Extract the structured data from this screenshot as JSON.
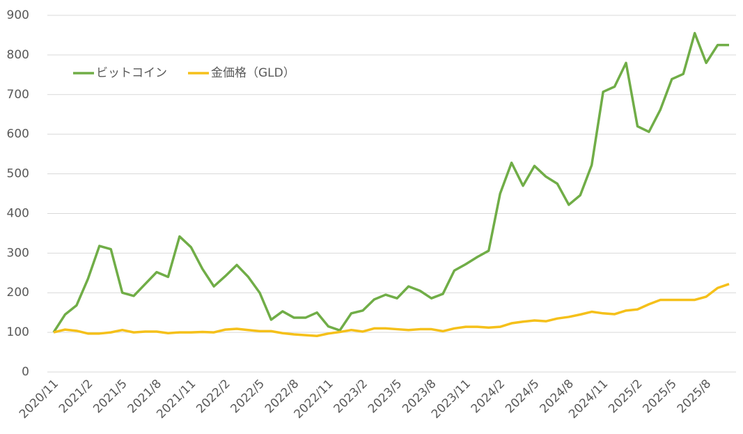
{
  "chart_data": {
    "type": "line",
    "categories": [
      "2020/11",
      null,
      null,
      "2021/2",
      null,
      null,
      "2021/5",
      null,
      null,
      "2021/8",
      null,
      null,
      "2021/11",
      null,
      null,
      "2022/2",
      null,
      null,
      "2022/5",
      null,
      null,
      "2022/8",
      null,
      null,
      "2022/11",
      null,
      null,
      "2023/2",
      null,
      null,
      "2023/5",
      null,
      null,
      "2023/8",
      null,
      null,
      "2023/11",
      null,
      null,
      "2024/2",
      null,
      null,
      "2024/5",
      null,
      null,
      "2024/8",
      null,
      null,
      "2024/11",
      null,
      null,
      "2025/2",
      null,
      null,
      "2025/5",
      null,
      null,
      "2025/8",
      null,
      null
    ],
    "series": [
      {
        "name": "ビットコイン",
        "color": "#70ad47",
        "values": [
          100,
          145,
          168,
          235,
          318,
          310,
          200,
          192,
          222,
          252,
          240,
          342,
          315,
          260,
          216,
          242,
          270,
          240,
          200,
          132,
          153,
          137,
          137,
          150,
          115,
          105,
          148,
          155,
          183,
          195,
          186,
          216,
          205,
          186,
          197,
          256,
          272,
          290,
          306,
          450,
          528,
          470,
          520,
          493,
          475,
          422,
          446,
          522,
          707,
          720,
          780,
          620,
          606,
          662,
          739,
          752,
          855,
          780,
          825,
          825
        ]
      },
      {
        "name": "金価格（GLD）",
        "color": "#f5c01a",
        "values": [
          100,
          107,
          104,
          97,
          97,
          100,
          106,
          100,
          102,
          102,
          98,
          100,
          100,
          101,
          100,
          107,
          109,
          106,
          103,
          103,
          98,
          95,
          93,
          91,
          97,
          101,
          106,
          102,
          110,
          110,
          108,
          106,
          108,
          108,
          103,
          110,
          114,
          114,
          112,
          114,
          123,
          127,
          130,
          128,
          135,
          139,
          145,
          152,
          148,
          146,
          155,
          158,
          171,
          182,
          182,
          182,
          182,
          190,
          212,
          222
        ]
      }
    ],
    "ylim": [
      0,
      900
    ],
    "yticks": [
      0,
      100,
      200,
      300,
      400,
      500,
      600,
      700,
      800,
      900
    ],
    "grid": true,
    "legend": "top-left"
  }
}
